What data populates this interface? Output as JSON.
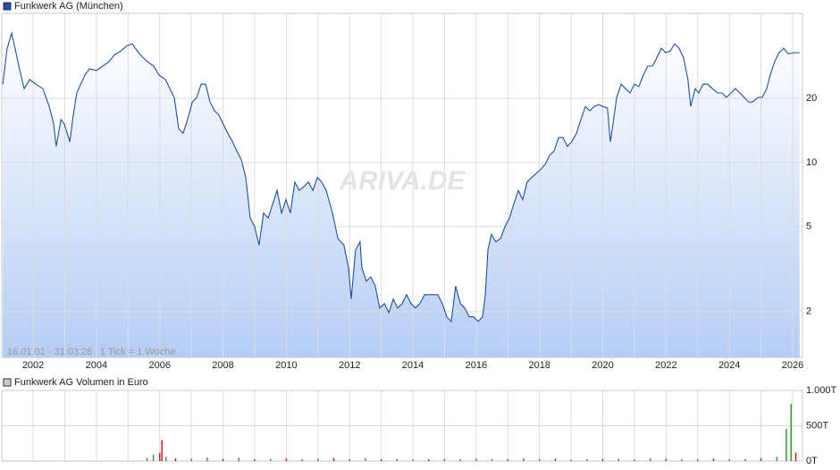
{
  "chart_data": [
    {
      "type": "line",
      "title": "Funkwerk AG (München)",
      "color": "#1f4fa8",
      "log_scale": true,
      "grid": true,
      "annotations": [
        "16.01.01 - 31.03.26",
        "1 Tick = 1 Woche"
      ],
      "watermark": "ARIVA.DE",
      "xlim": [
        2001.01,
        2026.31
      ],
      "xticks": [
        2002,
        2004,
        2006,
        2008,
        2010,
        2012,
        2014,
        2016,
        2018,
        2020,
        2022,
        2024,
        2026
      ],
      "x_minor_ticks": [
        2003,
        2005,
        2007,
        2009,
        2011,
        2013,
        2015,
        2017,
        2019,
        2021,
        2023,
        2025
      ],
      "ylim": [
        1.22,
        50
      ],
      "yticks": [
        2,
        5,
        10,
        20
      ],
      "x": [
        2001.04,
        2001.18,
        2001.32,
        2001.46,
        2001.58,
        2001.72,
        2001.89,
        2002.08,
        2002.31,
        2002.51,
        2002.65,
        2002.73,
        2002.88,
        2002.99,
        2003.16,
        2003.27,
        2003.38,
        2003.5,
        2003.64,
        2003.78,
        2004.0,
        2004.2,
        2004.4,
        2004.57,
        2004.77,
        2004.97,
        2005.13,
        2005.33,
        2005.47,
        2005.61,
        2005.81,
        2005.98,
        2006.18,
        2006.32,
        2006.46,
        2006.6,
        2006.74,
        2006.88,
        2007.03,
        2007.17,
        2007.31,
        2007.45,
        2007.59,
        2007.73,
        2007.87,
        2008.01,
        2008.15,
        2008.3,
        2008.44,
        2008.58,
        2008.72,
        2008.86,
        2009.0,
        2009.14,
        2009.28,
        2009.43,
        2009.57,
        2009.71,
        2009.85,
        2009.99,
        2010.13,
        2010.27,
        2010.41,
        2010.55,
        2010.7,
        2010.84,
        2010.98,
        2011.12,
        2011.26,
        2011.46,
        2011.63,
        2011.82,
        2011.97,
        2012.05,
        2012.19,
        2012.33,
        2012.39,
        2012.53,
        2012.67,
        2012.81,
        2012.95,
        2013.1,
        2013.24,
        2013.38,
        2013.52,
        2013.66,
        2013.8,
        2013.94,
        2014.08,
        2014.22,
        2014.37,
        2014.51,
        2014.65,
        2014.79,
        2014.93,
        2015.07,
        2015.21,
        2015.35,
        2015.5,
        2015.64,
        2015.78,
        2015.92,
        2016.06,
        2016.2,
        2016.29,
        2016.37,
        2016.48,
        2016.62,
        2016.77,
        2016.91,
        2017.05,
        2017.19,
        2017.33,
        2017.47,
        2017.61,
        2017.75,
        2017.9,
        2018.04,
        2018.18,
        2018.32,
        2018.46,
        2018.6,
        2018.74,
        2018.88,
        2019.02,
        2019.17,
        2019.31,
        2019.45,
        2019.59,
        2019.73,
        2019.87,
        2020.01,
        2020.15,
        2020.24,
        2020.32,
        2020.44,
        2020.58,
        2020.72,
        2020.86,
        2021.0,
        2021.14,
        2021.28,
        2021.42,
        2021.57,
        2021.71,
        2021.85,
        2021.99,
        2022.13,
        2022.27,
        2022.41,
        2022.55,
        2022.69,
        2022.78,
        2022.92,
        2023.03,
        2023.17,
        2023.32,
        2023.46,
        2023.63,
        2023.77,
        2023.91,
        2024.05,
        2024.19,
        2024.33,
        2024.47,
        2024.61,
        2024.73,
        2024.9,
        2025.04,
        2025.18,
        2025.29,
        2025.43,
        2025.57,
        2025.72,
        2025.86,
        2026.03,
        2026.22
      ],
      "values": [
        23.3,
        34.3,
        40.4,
        32.7,
        27,
        22.2,
        24.5,
        23.3,
        22.2,
        18.3,
        15.1,
        11.9,
        15.9,
        15.1,
        12.5,
        16.7,
        21.2,
        23.3,
        25.7,
        27.5,
        27,
        28.3,
        29.7,
        32,
        33.3,
        35.3,
        36,
        32.7,
        31.1,
        29.7,
        28.3,
        25.7,
        24.5,
        22.2,
        20.2,
        14.4,
        13.7,
        15.9,
        19.2,
        20.2,
        23.3,
        23.3,
        19.2,
        17.5,
        16.7,
        15.1,
        13.7,
        12.5,
        11.3,
        10.3,
        8.5,
        5.5,
        5,
        4.1,
        5.8,
        5.5,
        6.4,
        7.4,
        5.8,
        6.7,
        5.8,
        8.1,
        7.4,
        7.7,
        8.1,
        7.4,
        8.5,
        8.1,
        7.4,
        5.8,
        4.4,
        4.1,
        3.2,
        2.29,
        3.9,
        4.25,
        3.2,
        2.78,
        2.91,
        2.64,
        2.08,
        2.18,
        1.98,
        2.29,
        2.08,
        2.18,
        2.4,
        2.18,
        2.08,
        2.18,
        2.4,
        2.4,
        2.4,
        2.4,
        2.18,
        1.89,
        1.8,
        2.64,
        2.18,
        2.08,
        1.89,
        1.89,
        1.8,
        1.89,
        2.4,
        3.88,
        4.6,
        4.25,
        4.4,
        5,
        5.5,
        6.4,
        7.4,
        6.7,
        8.1,
        8.5,
        8.9,
        9.3,
        9.8,
        10.8,
        11.3,
        13.1,
        13.1,
        11.9,
        12.5,
        13.7,
        15.9,
        18.3,
        17.5,
        18.3,
        18.7,
        18.3,
        18,
        12.5,
        15.1,
        20.2,
        23.3,
        22.2,
        21.2,
        23.3,
        22.7,
        25.7,
        28.3,
        28.3,
        31.1,
        34.3,
        32.7,
        33.3,
        36,
        34.3,
        31.1,
        24.5,
        18.3,
        22.2,
        21.2,
        23.3,
        23.3,
        22.2,
        21.2,
        21.2,
        20.2,
        21.2,
        22.2,
        21.2,
        20.2,
        19.2,
        19.2,
        20.2,
        20.2,
        22.2,
        25.7,
        29.7,
        32.7,
        34.3,
        32.3,
        32.7,
        32.7
      ]
    },
    {
      "type": "volume",
      "title": "Funkwerk AG Volumen in Euro",
      "xlim": [
        2001.01,
        2026.31
      ],
      "ylim": [
        0,
        1000
      ],
      "yticks": [
        {
          "value": 0,
          "label": "0T"
        },
        {
          "value": 500,
          "label": "500T"
        },
        {
          "value": 1000,
          "label": "1.000T"
        }
      ],
      "x": [
        2005.6,
        2005.8,
        2006.0,
        2006.07,
        2006.2,
        2006.5,
        2007.0,
        2007.5,
        2008.0,
        2008.5,
        2009.0,
        2009.5,
        2010.0,
        2010.5,
        2011.0,
        2011.5,
        2012.0,
        2012.5,
        2013.0,
        2013.5,
        2014.0,
        2014.5,
        2015.0,
        2015.5,
        2016.0,
        2016.5,
        2017.0,
        2017.5,
        2018.0,
        2018.5,
        2019.0,
        2019.5,
        2020.0,
        2020.5,
        2021.0,
        2021.5,
        2022.0,
        2022.5,
        2023.0,
        2023.5,
        2024.0,
        2024.5,
        2025.0,
        2025.5,
        2025.8,
        2025.95,
        2026.1
      ],
      "values": [
        40,
        90,
        120,
        300,
        60,
        40,
        35,
        50,
        30,
        45,
        25,
        30,
        40,
        25,
        35,
        45,
        30,
        40,
        25,
        30,
        20,
        25,
        30,
        20,
        35,
        30,
        25,
        40,
        30,
        35,
        20,
        25,
        30,
        35,
        25,
        40,
        30,
        25,
        30,
        35,
        25,
        30,
        40,
        60,
        456,
        810,
        120
      ],
      "colors": [
        "#2e9e2e",
        "#2e9e2e",
        "#cc2222",
        "#cc2222",
        "#2e9e2e",
        "#cc2222",
        "#2e9e2e",
        "#2e9e2e",
        "#cc2222",
        "#2e9e2e",
        "#cc2222",
        "#2e9e2e",
        "#cc2222",
        "#2e9e2e",
        "#2e9e2e",
        "#cc2222",
        "#2e9e2e",
        "#2e9e2e",
        "#cc2222",
        "#2e9e2e",
        "#2e9e2e",
        "#cc2222",
        "#2e9e2e",
        "#cc2222",
        "#2e9e2e",
        "#2e9e2e",
        "#cc2222",
        "#2e9e2e",
        "#2e9e2e",
        "#cc2222",
        "#2e9e2e",
        "#2e9e2e",
        "#cc2222",
        "#2e9e2e",
        "#2e9e2e",
        "#2e9e2e",
        "#cc2222",
        "#2e9e2e",
        "#2e9e2e",
        "#cc2222",
        "#2e9e2e",
        "#2e9e2e",
        "#cc2222",
        "#2e9e2e",
        "#2e9e2e",
        "#2e9e2e",
        "#cc2222"
      ]
    }
  ]
}
